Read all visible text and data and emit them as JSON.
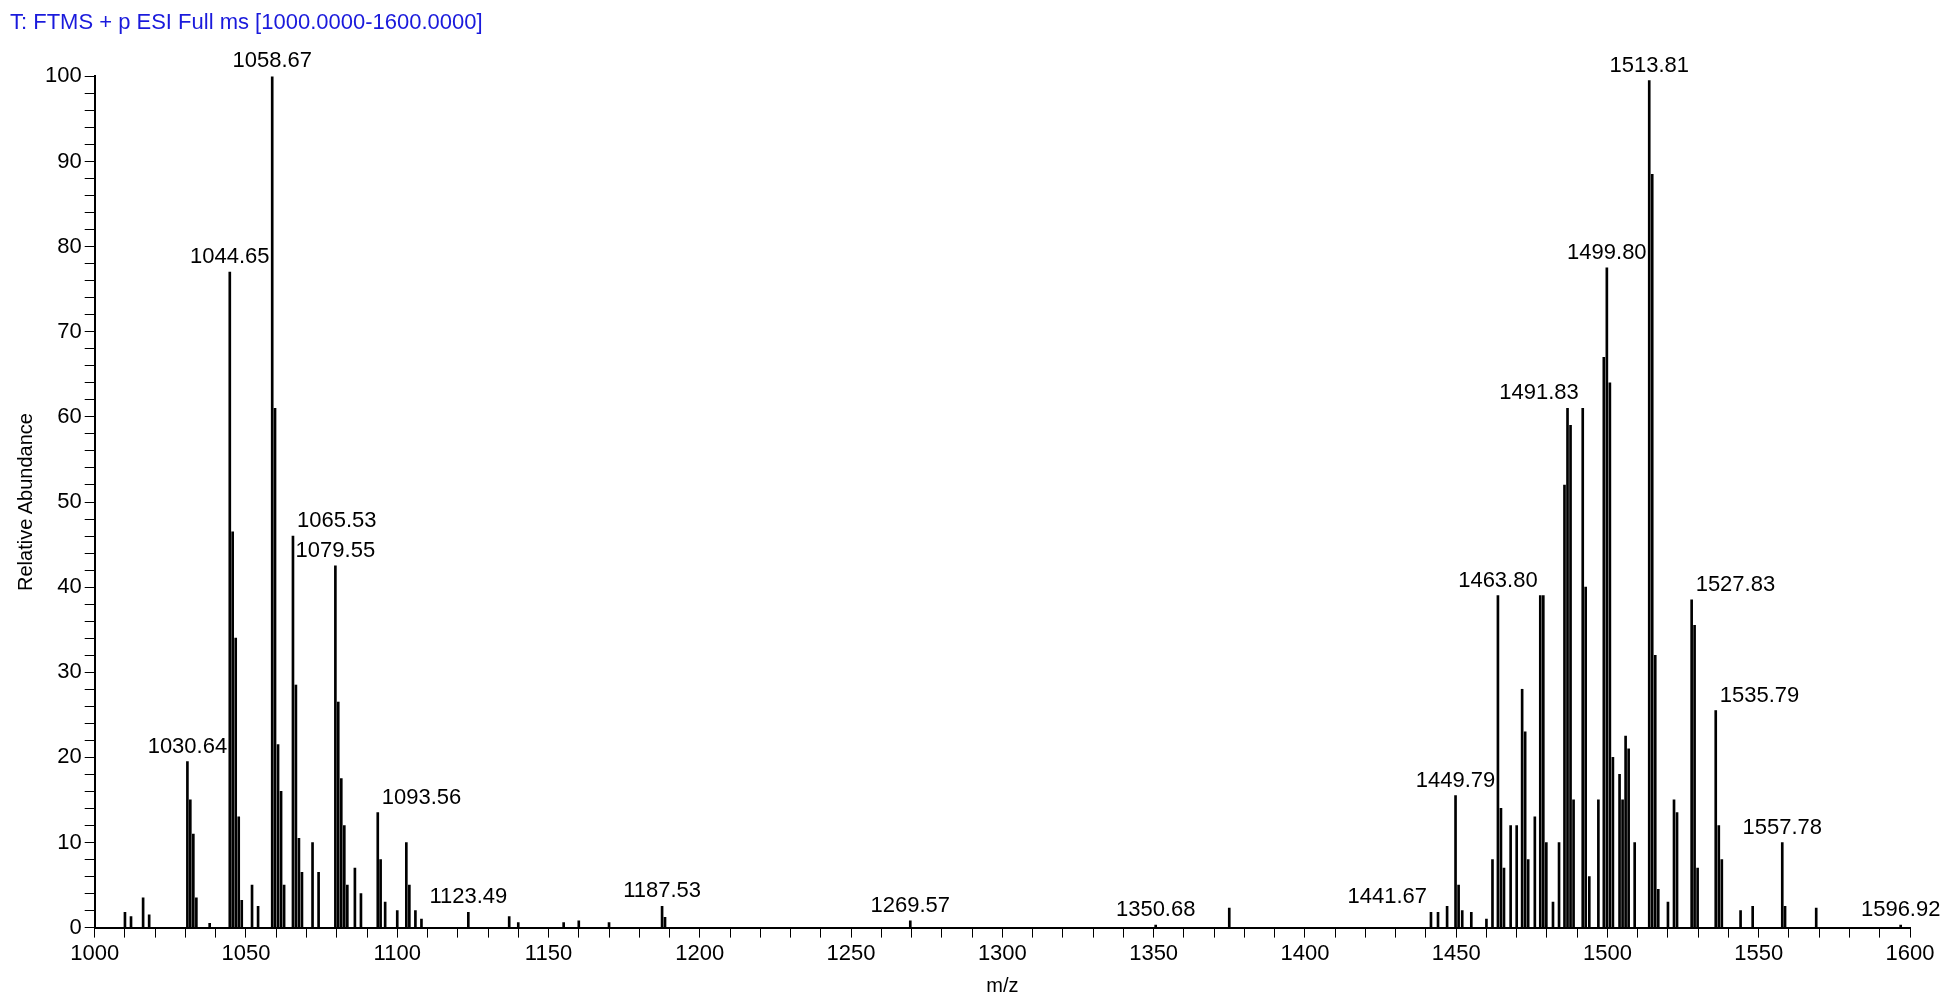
{
  "chart_data": {
    "type": "bar",
    "title": "T: FTMS + p ESI Full ms [1000.0000-1600.0000]",
    "xlabel": "m/z",
    "ylabel": "Relative Abundance",
    "x": [
      1010,
      1012,
      1016,
      1018,
      1030.64,
      1031.6,
      1032.6,
      1033.6,
      1038,
      1044.65,
      1045.6,
      1046.6,
      1047.6,
      1048.6,
      1052,
      1054,
      1058.67,
      1059.6,
      1060.6,
      1061.6,
      1062.6,
      1065.53,
      1066.5,
      1067.5,
      1068.5,
      1072,
      1074,
      1079.55,
      1080.5,
      1081.5,
      1082.5,
      1083.5,
      1086,
      1088,
      1093.56,
      1094.5,
      1096,
      1100,
      1103,
      1104,
      1106,
      1108,
      1123.49,
      1137,
      1140,
      1155,
      1160,
      1170,
      1187.53,
      1188.5,
      1269.57,
      1350.68,
      1375,
      1441.67,
      1444,
      1447,
      1449.79,
      1450.8,
      1452,
      1455,
      1460,
      1462,
      1463.8,
      1464.8,
      1465.8,
      1468,
      1470,
      1471.8,
      1472.8,
      1473.8,
      1476,
      1477.8,
      1478.8,
      1479.8,
      1482,
      1484,
      1485.8,
      1486.8,
      1487.8,
      1488.8,
      1491.83,
      1492.8,
      1494,
      1497,
      1498.8,
      1499.8,
      1500.8,
      1501.8,
      1504,
      1505,
      1506,
      1507,
      1509,
      1513.81,
      1514.8,
      1515.8,
      1516.8,
      1520,
      1522,
      1523,
      1527.83,
      1528.8,
      1529.8,
      1535.79,
      1536.8,
      1537.8,
      1544,
      1548,
      1557.78,
      1558.7,
      1569,
      1596.92
    ],
    "values": [
      1.8,
      1.3,
      3.5,
      1.5,
      19.5,
      15,
      11,
      3.5,
      0.5,
      77,
      46.5,
      34,
      13,
      3.2,
      5,
      2.5,
      100,
      61,
      21.5,
      16,
      5,
      46,
      28.5,
      10.5,
      6.5,
      10,
      6.5,
      42.5,
      26.5,
      17.5,
      12,
      5,
      7,
      4,
      13.5,
      8,
      3,
      2,
      10,
      5,
      2,
      1,
      1.8,
      1.3,
      0.6,
      0.6,
      0.8,
      0.6,
      2.5,
      1.2,
      0.8,
      0.3,
      2.3,
      1.8,
      1.8,
      2.5,
      15.5,
      5,
      2,
      1.8,
      1,
      8,
      39,
      14,
      7,
      12,
      12,
      28,
      23,
      8,
      13,
      39,
      39,
      10,
      3,
      10,
      52,
      61,
      59,
      15,
      61,
      40,
      6,
      15,
      67,
      77.5,
      64,
      20,
      18,
      15,
      22.5,
      21,
      10,
      99.5,
      88.5,
      32,
      4.5,
      3,
      15,
      13.5,
      38.5,
      35.5,
      7,
      25.5,
      12,
      8,
      2,
      2.5,
      10,
      2.5,
      2.3,
      0.3
    ],
    "color": "#000000",
    "annotations": [
      {
        "text": "1030.64",
        "x": 1030.64,
        "y": 19.5
      },
      {
        "text": "1044.65",
        "x": 1044.65,
        "y": 77
      },
      {
        "text": "1058.67",
        "x": 1058.67,
        "y": 100
      },
      {
        "text": "1065.53",
        "x": 1065.53,
        "y": 46
      },
      {
        "text": "1079.55",
        "x": 1079.55,
        "y": 42.5
      },
      {
        "text": "1093.56",
        "x": 1093.56,
        "y": 13.5
      },
      {
        "text": "1123.49",
        "x": 1123.49,
        "y": 1.8
      },
      {
        "text": "1187.53",
        "x": 1187.53,
        "y": 2.5
      },
      {
        "text": "1269.57",
        "x": 1269.57,
        "y": 0.8
      },
      {
        "text": "1350.68",
        "x": 1350.68,
        "y": 0.3
      },
      {
        "text": "1441.67",
        "x": 1441.67,
        "y": 1.8
      },
      {
        "text": "1449.79",
        "x": 1449.79,
        "y": 15.5
      },
      {
        "text": "1463.80",
        "x": 1463.8,
        "y": 39
      },
      {
        "text": "1491.83",
        "x": 1491.83,
        "y": 61
      },
      {
        "text": "1499.80",
        "x": 1499.8,
        "y": 77.5
      },
      {
        "text": "1513.81",
        "x": 1513.81,
        "y": 99.5
      },
      {
        "text": "1527.83",
        "x": 1527.83,
        "y": 38.5
      },
      {
        "text": "1535.79",
        "x": 1535.79,
        "y": 25.5
      },
      {
        "text": "1557.78",
        "x": 1557.78,
        "y": 10
      },
      {
        "text": "1596.92",
        "x": 1596.92,
        "y": 0.3
      }
    ],
    "xlim": [
      1000,
      1600
    ],
    "xticks": [
      1000,
      {
        "value": 1010,
        "label": null
      },
      {
        "value": 1020,
        "label": null
      },
      {
        "value": 1030,
        "label": null
      },
      {
        "value": 1040,
        "label": null
      },
      1050,
      {
        "value": 1060,
        "label": null
      },
      {
        "value": 1070,
        "label": null
      },
      {
        "value": 1080,
        "label": null
      },
      {
        "value": 1090,
        "label": null
      },
      1100,
      {
        "value": 1110,
        "label": null
      },
      {
        "value": 1120,
        "label": null
      },
      {
        "value": 1130,
        "label": null
      },
      {
        "value": 1140,
        "label": null
      },
      1150,
      {
        "value": 1160,
        "label": null
      },
      {
        "value": 1170,
        "label": null
      },
      {
        "value": 1180,
        "label": null
      },
      {
        "value": 1190,
        "label": null
      },
      1200,
      {
        "value": 1210,
        "label": null
      },
      {
        "value": 1220,
        "label": null
      },
      {
        "value": 1230,
        "label": null
      },
      {
        "value": 1240,
        "label": null
      },
      1250,
      {
        "value": 1260,
        "label": null
      },
      {
        "value": 1270,
        "label": null
      },
      {
        "value": 1280,
        "label": null
      },
      {
        "value": 1290,
        "label": null
      },
      1300,
      {
        "value": 1310,
        "label": null
      },
      {
        "value": 1320,
        "label": null
      },
      {
        "value": 1330,
        "label": null
      },
      {
        "value": 1340,
        "label": null
      },
      1350,
      {
        "value": 1360,
        "label": null
      },
      {
        "value": 1370,
        "label": null
      },
      {
        "value": 1380,
        "label": null
      },
      {
        "value": 1390,
        "label": null
      },
      1400,
      {
        "value": 1410,
        "label": null
      },
      {
        "value": 1420,
        "label": null
      },
      {
        "value": 1430,
        "label": null
      },
      {
        "value": 1440,
        "label": null
      },
      1450,
      {
        "value": 1460,
        "label": null
      },
      {
        "value": 1470,
        "label": null
      },
      {
        "value": 1480,
        "label": null
      },
      {
        "value": 1490,
        "label": null
      },
      1500,
      {
        "value": 1510,
        "label": null
      },
      {
        "value": 1520,
        "label": null
      },
      {
        "value": 1530,
        "label": null
      },
      {
        "value": 1540,
        "label": null
      },
      1550,
      {
        "value": 1560,
        "label": null
      },
      {
        "value": 1570,
        "label": null
      },
      {
        "value": 1580,
        "label": null
      },
      {
        "value": 1590,
        "label": null
      },
      1600
    ],
    "ylim": [
      0,
      100
    ],
    "yticks": [
      0,
      {
        "value": 2,
        "label": null
      },
      {
        "value": 4,
        "label": null
      },
      {
        "value": 6,
        "label": null
      },
      {
        "value": 8,
        "label": null
      },
      10,
      {
        "value": 12,
        "label": null
      },
      {
        "value": 14,
        "label": null
      },
      {
        "value": 16,
        "label": null
      },
      {
        "value": 18,
        "label": null
      },
      20,
      {
        "value": 22,
        "label": null
      },
      {
        "value": 24,
        "label": null
      },
      {
        "value": 26,
        "label": null
      },
      {
        "value": 28,
        "label": null
      },
      30,
      {
        "value": 32,
        "label": null
      },
      {
        "value": 34,
        "label": null
      },
      {
        "value": 36,
        "label": null
      },
      {
        "value": 38,
        "label": null
      },
      40,
      {
        "value": 42,
        "label": null
      },
      {
        "value": 44,
        "label": null
      },
      {
        "value": 46,
        "label": null
      },
      {
        "value": 48,
        "label": null
      },
      50,
      {
        "value": 52,
        "label": null
      },
      {
        "value": 54,
        "label": null
      },
      {
        "value": 56,
        "label": null
      },
      {
        "value": 58,
        "label": null
      },
      60,
      {
        "value": 62,
        "label": null
      },
      {
        "value": 64,
        "label": null
      },
      {
        "value": 66,
        "label": null
      },
      {
        "value": 68,
        "label": null
      },
      70,
      {
        "value": 72,
        "label": null
      },
      {
        "value": 74,
        "label": null
      },
      {
        "value": 76,
        "label": null
      },
      {
        "value": 78,
        "label": null
      },
      80,
      {
        "value": 82,
        "label": null
      },
      {
        "value": 84,
        "label": null
      },
      {
        "value": 86,
        "label": null
      },
      {
        "value": 88,
        "label": null
      },
      90,
      {
        "value": 92,
        "label": null
      },
      {
        "value": 94,
        "label": null
      },
      {
        "value": 96,
        "label": null
      },
      {
        "value": 98,
        "label": null
      },
      100
    ],
    "grid": false,
    "legend": false
  }
}
